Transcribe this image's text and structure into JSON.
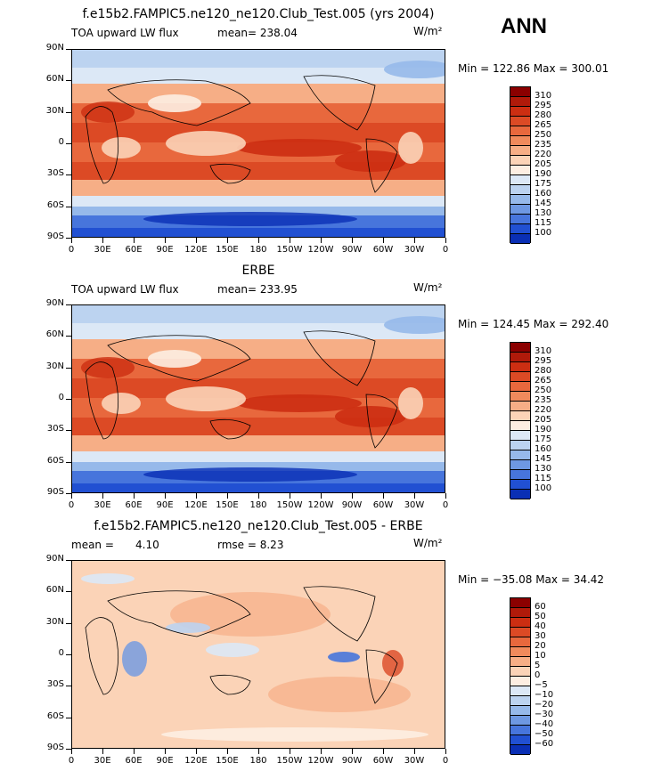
{
  "season": "ANN",
  "y_ticks": [
    "90N",
    "60N",
    "30N",
    "0",
    "30S",
    "60S",
    "90S"
  ],
  "x_ticks": [
    "0",
    "30E",
    "60E",
    "90E",
    "120E",
    "150E",
    "180",
    "150W",
    "120W",
    "90W",
    "60W",
    "30W",
    "0"
  ],
  "panels": [
    {
      "title": "f.e15b2.FAMPIC5.ne120_ne120.Club_Test.005 (yrs 2004)",
      "left_label": "TOA upward LW flux",
      "stat1": "mean=",
      "stat1_value": "238.04",
      "stat2": "",
      "stat2_value": "",
      "units": "W/m²",
      "minmax": "Min = 122.86 Max = 300.01",
      "cbar_labels": [
        "310",
        "295",
        "280",
        "265",
        "250",
        "235",
        "220",
        "205",
        "190",
        "175",
        "160",
        "145",
        "130",
        "115",
        "100"
      ],
      "cbar_colors": [
        "#8b0000",
        "#b01a0a",
        "#cc2e12",
        "#dc4a25",
        "#e8683d",
        "#f08a5c",
        "#f6ae86",
        "#fbd3b7",
        "#fdeee2",
        "#dce8f6",
        "#bcd3f0",
        "#96b9ea",
        "#6e98e2",
        "#4775dc",
        "#2150d2",
        "#0a2fb5"
      ]
    },
    {
      "title": "ERBE",
      "left_label": "TOA upward LW flux",
      "stat1": "mean=",
      "stat1_value": "233.95",
      "stat2": "",
      "stat2_value": "",
      "units": "W/m²",
      "minmax": "Min = 124.45 Max = 292.40",
      "cbar_labels": [
        "310",
        "295",
        "280",
        "265",
        "250",
        "235",
        "220",
        "205",
        "190",
        "175",
        "160",
        "145",
        "130",
        "115",
        "100"
      ],
      "cbar_colors": [
        "#8b0000",
        "#b01a0a",
        "#cc2e12",
        "#dc4a25",
        "#e8683d",
        "#f08a5c",
        "#f6ae86",
        "#fbd3b7",
        "#fdeee2",
        "#dce8f6",
        "#bcd3f0",
        "#96b9ea",
        "#6e98e2",
        "#4775dc",
        "#2150d2",
        "#0a2fb5"
      ]
    },
    {
      "title": "f.e15b2.FAMPIC5.ne120_ne120.Club_Test.005 - ERBE",
      "left_label": "mean =",
      "stat1": "",
      "stat1_value": "4.10",
      "stat2": "rmse =",
      "stat2_value": "8.23",
      "units": "W/m²",
      "minmax": "Min = −35.08 Max = 34.42",
      "cbar_labels": [
        "60",
        "50",
        "40",
        "30",
        "20",
        "10",
        "5",
        "0",
        "−5",
        "−10",
        "−20",
        "−30",
        "−40",
        "−50",
        "−60"
      ],
      "cbar_colors": [
        "#8b0000",
        "#b01a0a",
        "#cc2e12",
        "#dc4a25",
        "#e8683d",
        "#f08a5c",
        "#f6ae86",
        "#fbd3b7",
        "#fdeee2",
        "#dce8f6",
        "#bcd3f0",
        "#96b9ea",
        "#6e98e2",
        "#4775dc",
        "#2150d2",
        "#0a2fb5"
      ]
    }
  ]
}
